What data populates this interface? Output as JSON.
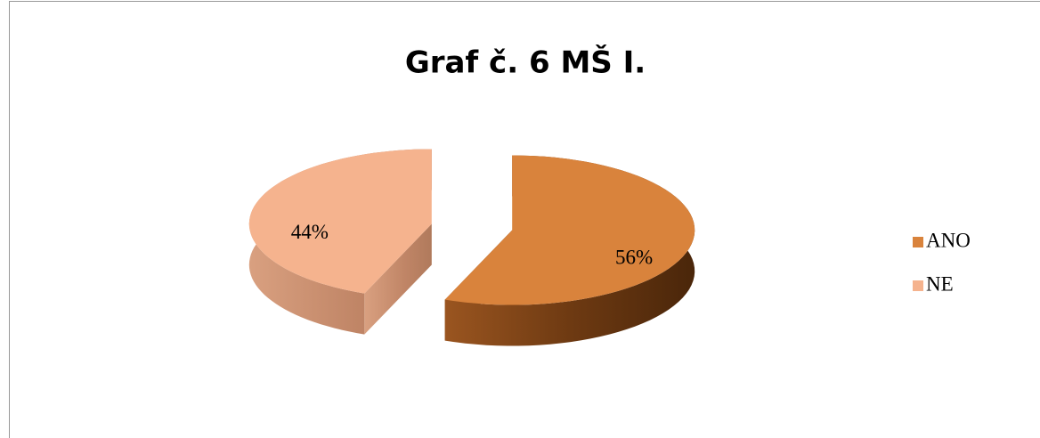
{
  "chart_data": {
    "type": "pie",
    "title": "Graf č. 6 MŠ I.",
    "categories": [
      "ANO",
      "NE"
    ],
    "values": [
      56,
      44
    ],
    "value_labels": [
      "56%",
      "44%"
    ],
    "colors": [
      "#d9833c",
      "#f5b38e"
    ],
    "legend": "right"
  }
}
